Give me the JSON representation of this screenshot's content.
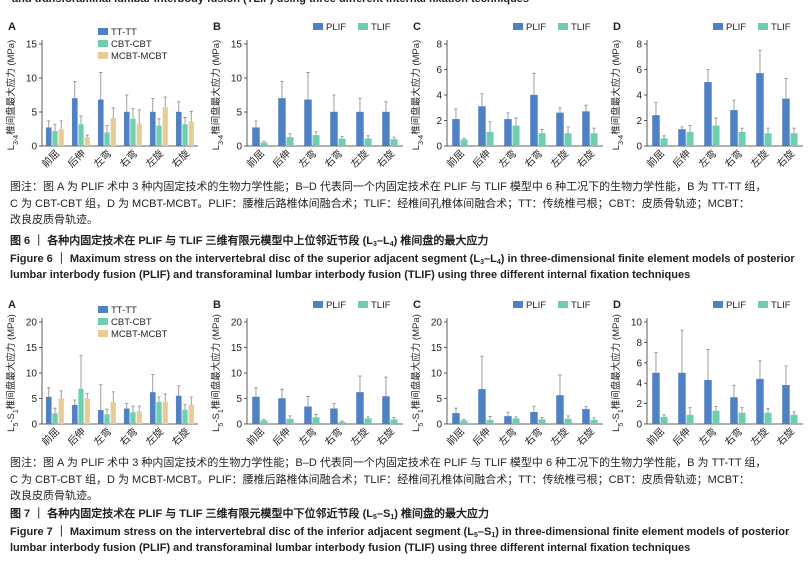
{
  "header_fragment": "and transforaminal lumbar interbody fusion (TLIF) using three different internal fixation techniques",
  "chart_data": [
    {
      "type": "bar",
      "panel": "A",
      "figure": 6,
      "categories": [
        "前屈",
        "后伸",
        "左弯",
        "右弯",
        "左旋",
        "右旋"
      ],
      "ylabel": [
        "L",
        {
          "sub": "3-4"
        },
        "椎间盘最大应力 (MPa)"
      ],
      "ylim": [
        0,
        15
      ],
      "yticks": [
        0,
        5,
        10,
        15
      ],
      "legend": "top-right",
      "series": [
        {
          "name": "TT-TT",
          "color": "#4f81c7",
          "values": [
            2.7,
            7.0,
            6.8,
            5.0,
            5.0,
            5.0
          ],
          "errors": [
            1.0,
            2.5,
            4.0,
            2.5,
            2.0,
            1.5
          ]
        },
        {
          "name": "CBT-CBT",
          "color": "#6dcfae",
          "values": [
            2.2,
            3.2,
            2.0,
            4.0,
            3.0,
            3.2
          ],
          "errors": [
            1.0,
            1.2,
            1.0,
            1.5,
            1.0,
            1.0
          ]
        },
        {
          "name": "MCBT-MCBT",
          "color": "#e6cc99",
          "values": [
            2.5,
            1.3,
            4.1,
            3.3,
            5.7,
            3.6
          ],
          "errors": [
            1.2,
            0.3,
            1.5,
            2.0,
            1.5,
            1.5
          ]
        }
      ]
    },
    {
      "type": "bar",
      "panel": "B",
      "figure": 6,
      "categories": [
        "前屈",
        "后伸",
        "左弯",
        "右弯",
        "左旋",
        "右旋"
      ],
      "ylabel": [
        "L",
        {
          "sub": "3-4"
        },
        "椎间盘最大应力 (MPa)"
      ],
      "ylim": [
        0,
        15
      ],
      "yticks": [
        0,
        5,
        10,
        15
      ],
      "legend": "top-right",
      "series": [
        {
          "name": "PLIF",
          "color": "#4f81c7",
          "values": [
            2.7,
            7.0,
            6.8,
            5.0,
            5.0,
            5.0
          ],
          "errors": [
            1.0,
            2.5,
            4.0,
            2.5,
            2.0,
            1.5
          ]
        },
        {
          "name": "TLIF",
          "color": "#6dcfae",
          "values": [
            0.5,
            1.3,
            1.6,
            1.1,
            1.1,
            1.0
          ],
          "errors": [
            0.2,
            0.5,
            0.5,
            0.3,
            0.4,
            0.3
          ]
        }
      ]
    },
    {
      "type": "bar",
      "panel": "C",
      "figure": 6,
      "categories": [
        "前屈",
        "后伸",
        "左弯",
        "右弯",
        "左旋",
        "右旋"
      ],
      "ylabel": [
        "L",
        {
          "sub": "3-4"
        },
        "椎间盘最大应力 (MPa)"
      ],
      "ylim": [
        0,
        8
      ],
      "yticks": [
        0,
        2,
        4,
        6,
        8
      ],
      "legend": "top-right",
      "series": [
        {
          "name": "PLIF",
          "color": "#4f81c7",
          "values": [
            2.1,
            3.1,
            2.1,
            4.0,
            2.6,
            2.7
          ],
          "errors": [
            0.8,
            1.0,
            0.5,
            1.7,
            0.4,
            0.5
          ]
        },
        {
          "name": "TLIF",
          "color": "#6dcfae",
          "values": [
            0.5,
            1.1,
            1.6,
            1.0,
            1.0,
            1.0
          ],
          "errors": [
            0.1,
            0.8,
            0.6,
            0.3,
            0.5,
            0.4
          ]
        }
      ]
    },
    {
      "type": "bar",
      "panel": "D",
      "figure": 6,
      "categories": [
        "前屈",
        "后伸",
        "左弯",
        "右弯",
        "左旋",
        "右旋"
      ],
      "ylabel": [
        "L",
        {
          "sub": "3-4"
        },
        "椎间盘最大应力 (MPa)"
      ],
      "ylim": [
        0,
        8
      ],
      "yticks": [
        0,
        2,
        4,
        6,
        8
      ],
      "legend": "top-right",
      "series": [
        {
          "name": "PLIF",
          "color": "#4f81c7",
          "values": [
            2.4,
            1.3,
            5.0,
            2.8,
            5.7,
            3.7
          ],
          "errors": [
            1.0,
            0.2,
            1.0,
            0.8,
            1.8,
            1.6
          ]
        },
        {
          "name": "TLIF",
          "color": "#6dcfae",
          "values": [
            0.6,
            1.1,
            1.6,
            1.1,
            1.0,
            1.0
          ],
          "errors": [
            0.2,
            0.5,
            0.6,
            0.3,
            0.4,
            0.4
          ]
        }
      ]
    },
    {
      "type": "bar",
      "panel": "A",
      "figure": 7,
      "categories": [
        "前屈",
        "后伸",
        "左弯",
        "右弯",
        "左旋",
        "右旋"
      ],
      "ylabel": [
        "L",
        {
          "sub": "5"
        },
        "-S",
        {
          "sub": "1"
        },
        "椎间盘最大应力 (MPa)"
      ],
      "ylim": [
        0,
        20
      ],
      "yticks": [
        0,
        5,
        10,
        15,
        20
      ],
      "legend": "top-right",
      "series": [
        {
          "name": "TT-TT",
          "color": "#4f81c7",
          "values": [
            5.3,
            3.7,
            2.7,
            3.0,
            6.2,
            5.5
          ],
          "errors": [
            1.8,
            1.0,
            5.0,
            1.0,
            3.5,
            2.0
          ]
        },
        {
          "name": "CBT-CBT",
          "color": "#6dcfae",
          "values": [
            2.1,
            6.9,
            1.9,
            2.3,
            4.3,
            2.8
          ],
          "errors": [
            1.0,
            6.5,
            1.0,
            1.2,
            1.0,
            1.0
          ]
        },
        {
          "name": "MCBT-MCBT",
          "color": "#e6cc99",
          "values": [
            5.0,
            5.0,
            4.3,
            2.5,
            4.4,
            3.8
          ],
          "errors": [
            1.5,
            1.0,
            2.0,
            1.0,
            1.5,
            1.5
          ]
        }
      ]
    },
    {
      "type": "bar",
      "panel": "B",
      "figure": 7,
      "categories": [
        "前屈",
        "后伸",
        "左弯",
        "右弯",
        "左旋",
        "右旋"
      ],
      "ylabel": [
        "L",
        {
          "sub": "5"
        },
        "-S",
        {
          "sub": "1"
        },
        "椎间盘最大应力 (MPa)"
      ],
      "ylim": [
        0,
        20
      ],
      "yticks": [
        0,
        5,
        10,
        15,
        20
      ],
      "legend": "top-right",
      "series": [
        {
          "name": "PLIF",
          "color": "#4f81c7",
          "values": [
            5.3,
            5.0,
            3.4,
            3.0,
            6.2,
            5.4
          ],
          "errors": [
            1.8,
            1.8,
            2.0,
            1.0,
            3.2,
            3.8
          ]
        },
        {
          "name": "TLIF",
          "color": "#6dcfae",
          "values": [
            0.7,
            1.0,
            1.3,
            0.4,
            1.1,
            0.9
          ],
          "errors": [
            0.2,
            0.6,
            0.6,
            0.2,
            0.3,
            0.4
          ]
        }
      ]
    },
    {
      "type": "bar",
      "panel": "C",
      "figure": 7,
      "categories": [
        "前屈",
        "后伸",
        "左弯",
        "右弯",
        "左旋",
        "右旋"
      ],
      "ylabel": [
        "L",
        {
          "sub": "5"
        },
        "-S",
        {
          "sub": "1"
        },
        "椎间盘最大应力 (MPa)"
      ],
      "ylim": [
        0,
        20
      ],
      "yticks": [
        0,
        5,
        10,
        15,
        20
      ],
      "legend": "top-right",
      "series": [
        {
          "name": "PLIF",
          "color": "#4f81c7",
          "values": [
            2.1,
            6.8,
            1.5,
            2.3,
            5.6,
            2.9
          ],
          "errors": [
            1.0,
            6.5,
            0.8,
            1.2,
            4.0,
            0.5
          ]
        },
        {
          "name": "TLIF",
          "color": "#6dcfae",
          "values": [
            0.7,
            0.8,
            1.1,
            0.9,
            1.0,
            0.8
          ],
          "errors": [
            0.2,
            0.7,
            0.3,
            0.4,
            0.6,
            0.4
          ]
        }
      ]
    },
    {
      "type": "bar",
      "panel": "D",
      "figure": 7,
      "categories": [
        "前屈",
        "后伸",
        "左弯",
        "右弯",
        "左旋",
        "右旋"
      ],
      "ylabel": [
        "L",
        {
          "sub": "5"
        },
        "-S",
        {
          "sub": "1"
        },
        "椎间盘最大应力 (MPa)"
      ],
      "ylim": [
        0,
        10
      ],
      "yticks": [
        0,
        2,
        4,
        6,
        8,
        10
      ],
      "legend": "top-right",
      "series": [
        {
          "name": "PLIF",
          "color": "#4f81c7",
          "values": [
            5.0,
            5.0,
            4.3,
            2.6,
            4.4,
            3.8
          ],
          "errors": [
            2.0,
            4.2,
            3.0,
            1.2,
            1.8,
            1.9
          ]
        },
        {
          "name": "TLIF",
          "color": "#6dcfae",
          "values": [
            0.7,
            0.9,
            1.3,
            1.1,
            1.1,
            0.9
          ],
          "errors": [
            0.2,
            0.7,
            0.4,
            0.5,
            0.4,
            0.3
          ]
        }
      ]
    }
  ],
  "figures": [
    {
      "note": [
        [
          "图注：图 A 为 PLIF 术中 3 种内固定技术的生物力学性能；B–D 代表同一个内固定技术在 PLIF 与 TLIF 模型中 6 种工况下的生物力学性能，B 为 TT-TT 组，"
        ],
        [
          "C 为 CBT-CBT 组，D 为 MCBT-MCBT。PLIF：腰椎后路椎体间融合术；TLIF：经椎间孔椎体间融合术；TT：传统椎弓根；CBT：皮质骨轨迹；MCBT："
        ],
        [
          "改良皮质骨轨迹。"
        ]
      ],
      "caption_zh": [
        "图 6 ｜ 各种内固定技术在 PLIF 与 TLIF 三维有限元模型中上位邻近节段 (L",
        {
          "sub": "3"
        },
        "–L",
        {
          "sub": "4"
        },
        ") 椎间盘的最大应力"
      ],
      "caption_en": [
        [
          "Figure 6 ｜ Maximum stress on the intervertebral disc of the superior adjacent segment (L",
          {
            "sub": "3"
          },
          "–L",
          {
            "sub": "4"
          },
          ") in three-dimensional finite element models of posterior"
        ],
        [
          "lumbar interbody fusion (PLIF) and transforaminal lumbar interbody fusion (TLIF) using three different internal fixation techniques"
        ]
      ]
    },
    {
      "note": [
        [
          "图注：图 A 为 PLIF 术中 3 种内固定技术的生物力学性能；B–D 代表同一个内固定技术在 PLIF 与 TLIF 模型中 6 种工况下的生物力学性能，B 为 TT-TT 组，"
        ],
        [
          "C 为 CBT-CBT 组，D 为 MCBT-MCBT。PLIF：腰椎后路椎体间融合术；TLIF：经椎间孔椎体间融合术；TT：传统椎弓根；CBT：皮质骨轨迹；MCBT："
        ],
        [
          "改良皮质骨轨迹。"
        ]
      ],
      "caption_zh": [
        "图 7 ｜ 各种内固定技术在 PLIF 与 TLIF 三维有限元模型中下位邻近节段 (L",
        {
          "sub": "5"
        },
        "–S",
        {
          "sub": "1"
        },
        ") 椎间盘的最大应力"
      ],
      "caption_en": [
        [
          "Figure 7 ｜ Maximum stress on the intervertebral disc of the inferior adjacent segment (L",
          {
            "sub": "5"
          },
          "–S",
          {
            "sub": "1"
          },
          ") in three-dimensional finite element models of posterior"
        ],
        [
          "lumbar interbody fusion (PLIF) and transforaminal lumbar interbody fusion (TLIF) using three different internal fixation techniques"
        ]
      ]
    }
  ]
}
